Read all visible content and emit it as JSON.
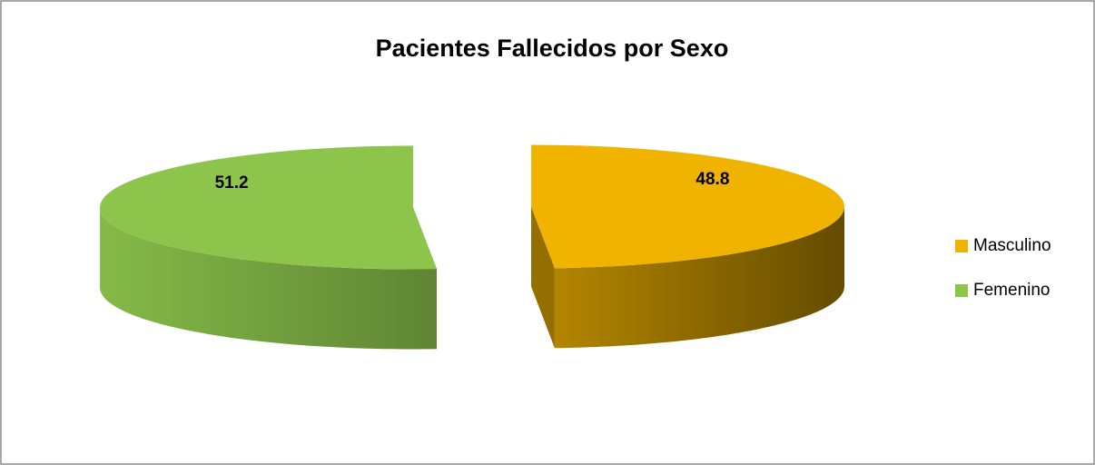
{
  "chart_data": {
    "type": "pie",
    "title": "Pacientes Fallecidos por Sexo",
    "categories": [
      "Masculino",
      "Femenino"
    ],
    "values": [
      48.8,
      51.2
    ],
    "colors": [
      "#efb300",
      "#8cc44c"
    ],
    "legend": "right",
    "exploded": true
  }
}
